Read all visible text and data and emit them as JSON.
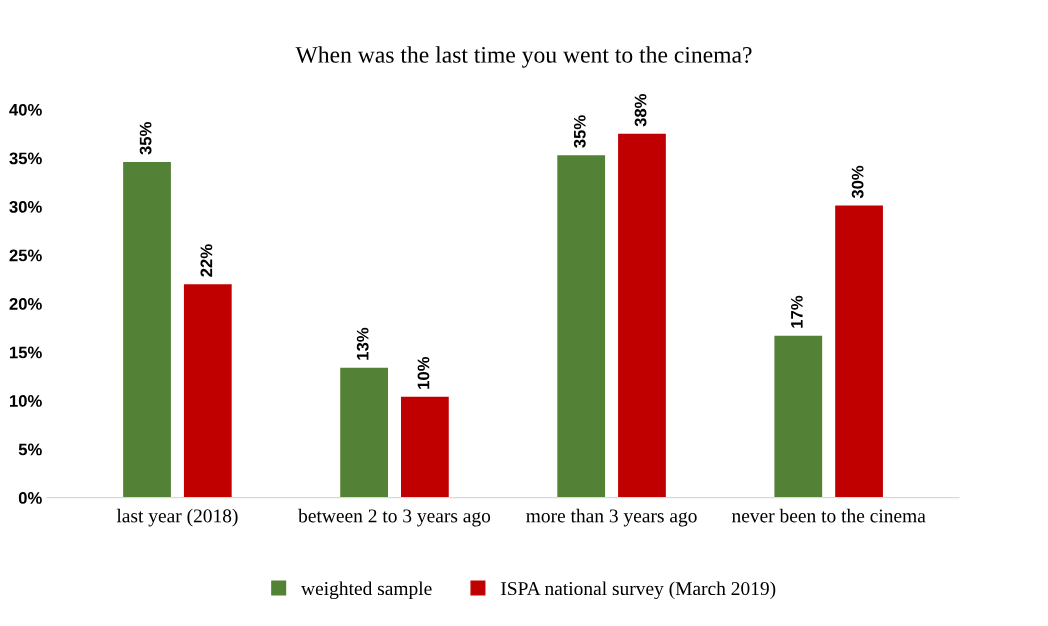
{
  "chart_data": {
    "type": "bar",
    "title": "When was the last time you went to the cinema?",
    "categories": [
      "last year (2018)",
      "between 2 to 3 years ago",
      "more than 3 years ago",
      "never been to the cinema"
    ],
    "series": [
      {
        "name": "weighted sample",
        "color": "#538135",
        "values": [
          34.6,
          13.4,
          35.3,
          16.7
        ],
        "value_labels": [
          "35%",
          "13%",
          "35%",
          "17%"
        ]
      },
      {
        "name": "ISPA national survey (March 2019)",
        "color": "#c00000",
        "values": [
          22.0,
          10.4,
          37.5,
          30.1
        ],
        "value_labels": [
          "22%",
          "10%",
          "38%",
          "30%"
        ]
      }
    ],
    "ylim": [
      0,
      40
    ],
    "yticks": [
      {
        "value": 0,
        "label": "0%"
      },
      {
        "value": 5,
        "label": "5%"
      },
      {
        "value": 10,
        "label": "10%"
      },
      {
        "value": 15,
        "label": "15%"
      },
      {
        "value": 20,
        "label": "20%"
      },
      {
        "value": 25,
        "label": "25%"
      },
      {
        "value": 30,
        "label": "30%"
      },
      {
        "value": 35,
        "label": "35%"
      },
      {
        "value": 40,
        "label": "40%"
      }
    ],
    "grid": false,
    "legend": "bottom"
  }
}
